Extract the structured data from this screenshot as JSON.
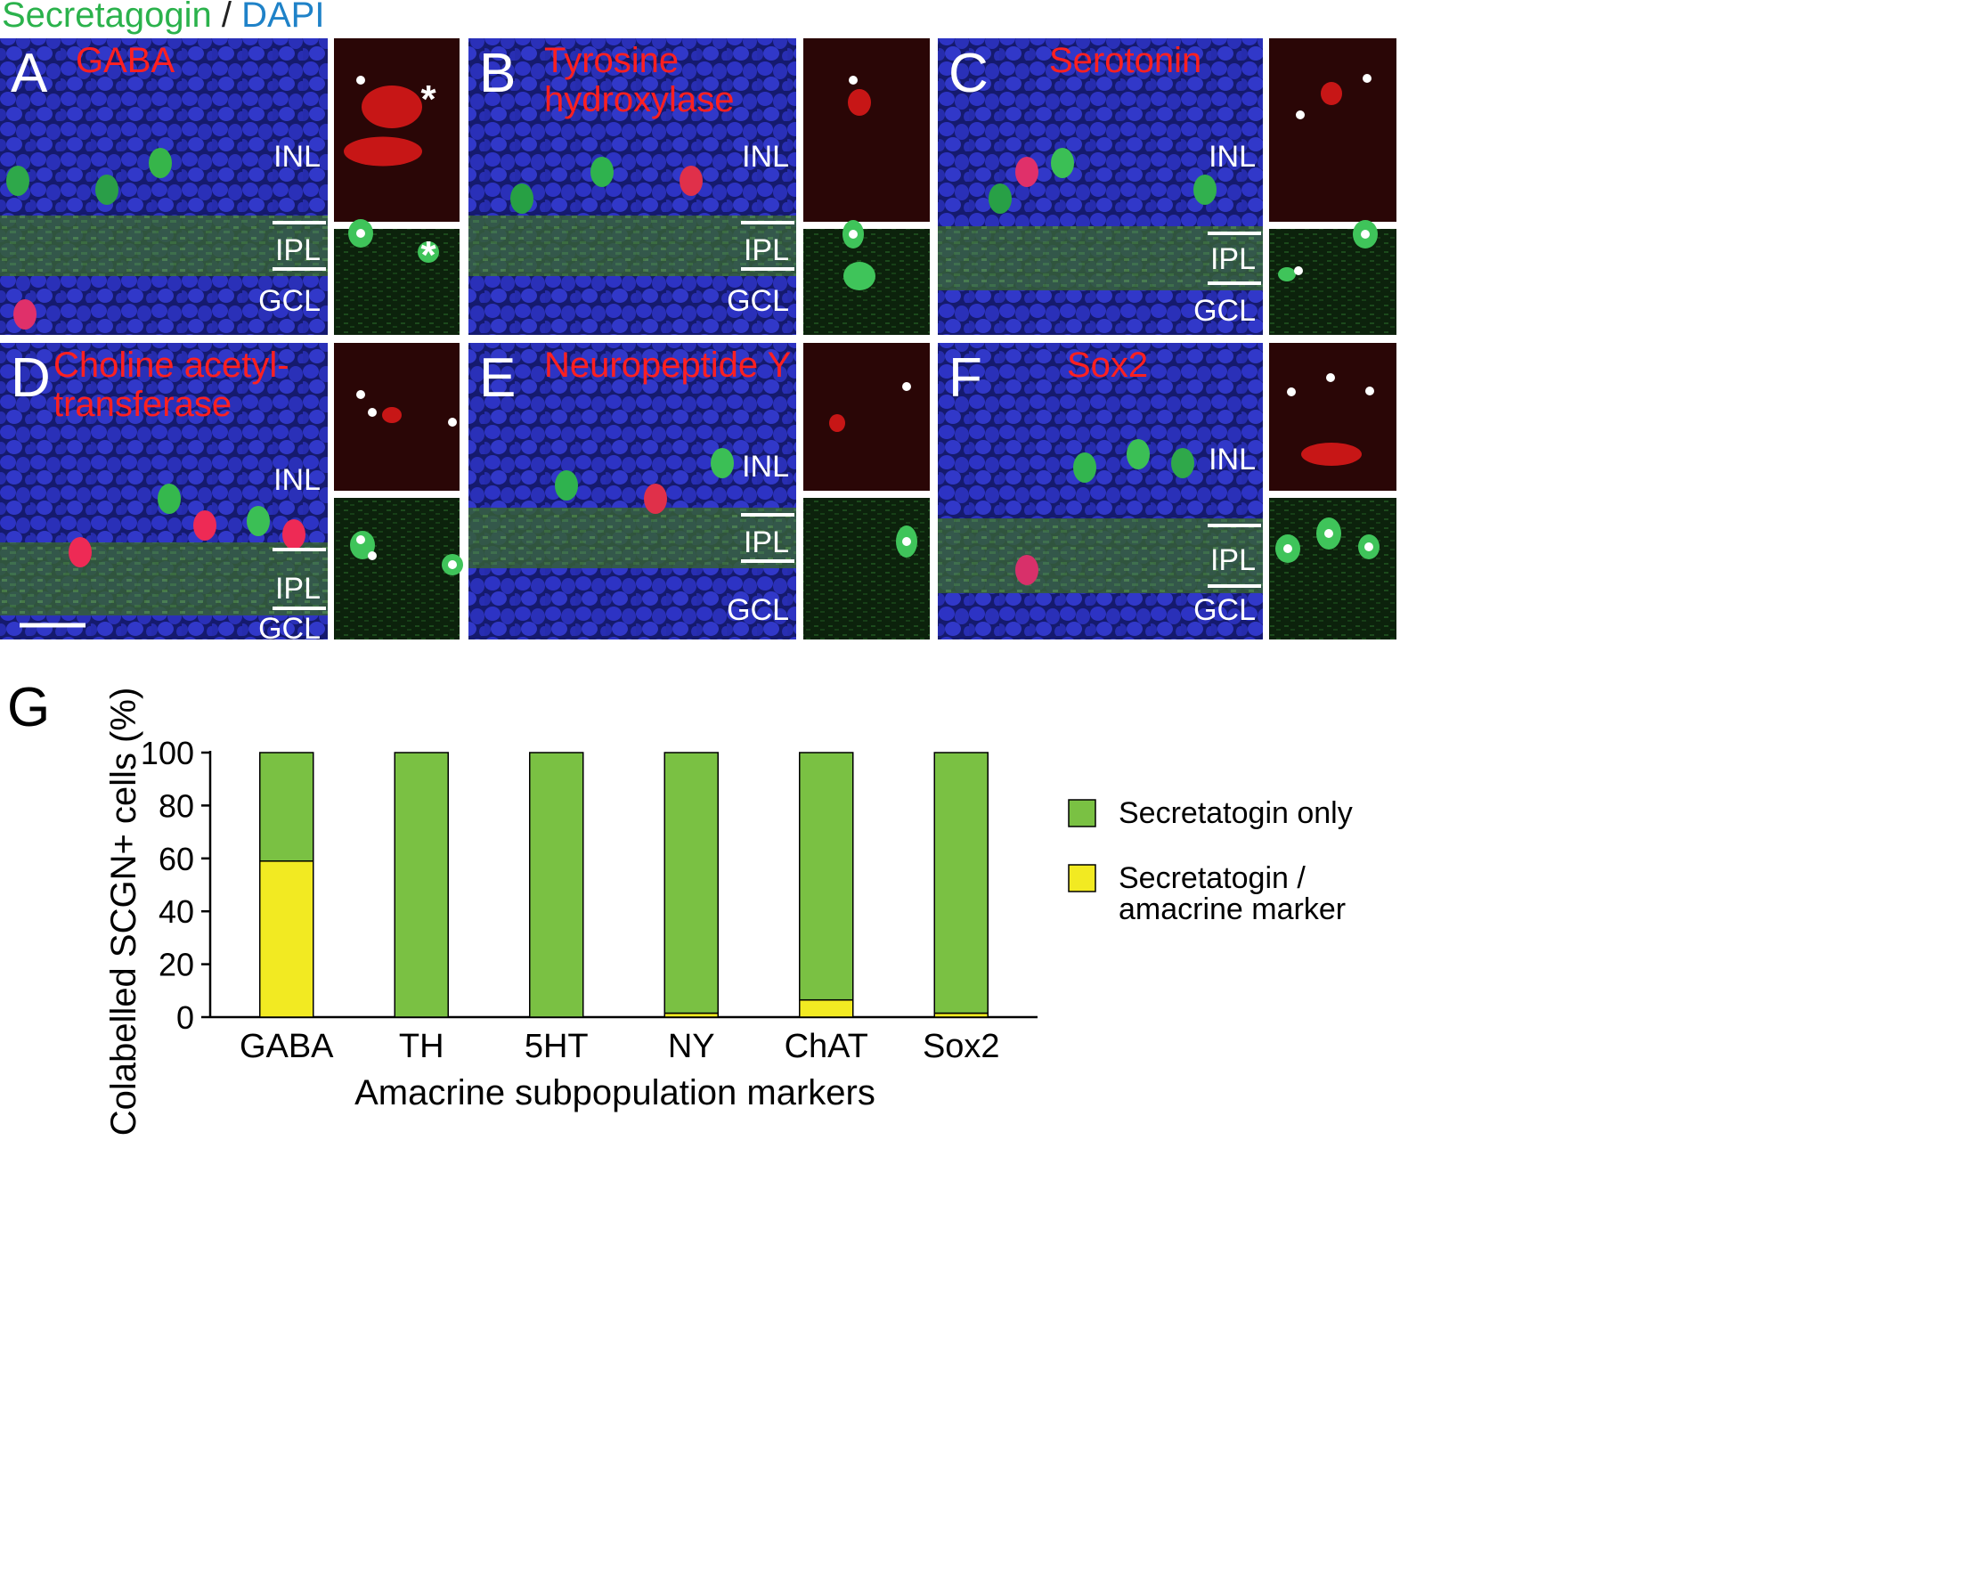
{
  "header": {
    "stain_green": "Secretagogin",
    "separator": " / ",
    "stain_blue": "DAPI"
  },
  "colors": {
    "green_text": "#2bb24c",
    "blue_text": "#1f82c8",
    "marker_red": "#ff2020",
    "dapi_blue": "#2a2db8",
    "green_bar": "#7ac143",
    "yellow_bar": "#f2ea22"
  },
  "panels": [
    {
      "letter": "A",
      "marker": [
        "GABA"
      ],
      "layers": [
        "INL",
        "IPL",
        "GCL"
      ],
      "inset_symbols": "dot-star",
      "scale_bar": false
    },
    {
      "letter": "B",
      "marker": [
        "Tyrosine",
        "hydroxylase"
      ],
      "layers": [
        "INL",
        "IPL",
        "GCL"
      ],
      "inset_symbols": "dot",
      "scale_bar": false
    },
    {
      "letter": "C",
      "marker": [
        "Serotonin"
      ],
      "layers": [
        "INL",
        "IPL",
        "GCL"
      ],
      "inset_symbols": "dot2",
      "scale_bar": false
    },
    {
      "letter": "D",
      "marker": [
        "Choline acetyl-",
        "transferase"
      ],
      "layers": [
        "INL",
        "IPL",
        "GCL"
      ],
      "inset_symbols": "dot3",
      "scale_bar": true
    },
    {
      "letter": "E",
      "marker": [
        "Neuropeptide Y"
      ],
      "layers": [
        "INL",
        "IPL",
        "GCL"
      ],
      "inset_symbols": "dot",
      "scale_bar": false
    },
    {
      "letter": "F",
      "marker": [
        "Sox2"
      ],
      "layers": [
        "INL",
        "IPL",
        "GCL"
      ],
      "inset_symbols": "dot3",
      "scale_bar": false
    }
  ],
  "chart_data": {
    "panel_letter": "G",
    "type": "bar",
    "stacked": true,
    "categories": [
      "GABA",
      "TH",
      "5HT",
      "NY",
      "ChAT",
      "Sox2"
    ],
    "series": [
      {
        "name": "Secretatogin / amacrine marker",
        "values": [
          59,
          0,
          0,
          1.5,
          6.5,
          1.5
        ],
        "color": "#f2ea22"
      },
      {
        "name": "Secretatogin only",
        "values": [
          41,
          100,
          100,
          98.5,
          93.5,
          98.5
        ],
        "color": "#7ac143"
      }
    ],
    "legend": [
      {
        "lines": [
          "Secretatogin only"
        ],
        "color": "#7ac143"
      },
      {
        "lines": [
          "Secretatogin /",
          "amacrine marker"
        ],
        "color": "#f2ea22"
      }
    ],
    "legend_placement": "right",
    "xlabel": "Amacrine subpopulation markers",
    "ylabel": "Colabelled SCGN+ cells (%)",
    "ylim": [
      0,
      100
    ],
    "yticks": [
      0,
      20,
      40,
      60,
      80,
      100
    ],
    "grid": false
  }
}
